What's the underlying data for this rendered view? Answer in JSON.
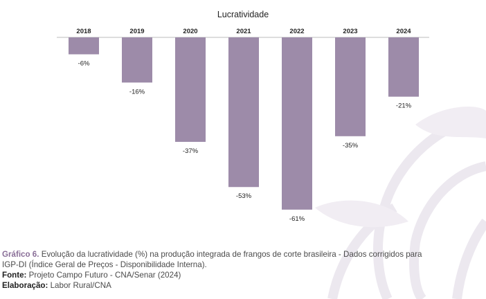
{
  "chart_data": {
    "type": "bar",
    "title": "Lucratividade",
    "categories": [
      "2018",
      "2019",
      "2020",
      "2021",
      "2022",
      "2023",
      "2024"
    ],
    "values": [
      -6,
      -16,
      -37,
      -53,
      -61,
      -35,
      -21
    ],
    "value_labels": [
      "-6%",
      "-16%",
      "-37%",
      "-53%",
      "-61%",
      "-35%",
      "-21%"
    ],
    "xlabel": "",
    "ylabel": "",
    "ylim": [
      -61,
      0
    ],
    "grid": false,
    "bar_color": "#9d8ba9"
  },
  "caption": {
    "figure_tag": "Gráfico 6.",
    "figure_text_line1": " Evolução da lucratividade (%) na produção integrada de frangos de corte brasileira - Dados corrigidos para",
    "figure_text_line2": "IGP-DI (Índice Geral de Preços - Disponibilidade Interna).",
    "source_tag": "Fonte:",
    "source_text": " Projeto Campo Futuro - CNA/Senar (2024)",
    "credit_tag": "Elaboração:",
    "credit_text": " Labor Rural/CNA"
  },
  "colors": {
    "accent": "#8a6f98",
    "bar": "#9d8ba9",
    "axis": "#bbbbbb",
    "watermark": "#ece8ef"
  }
}
